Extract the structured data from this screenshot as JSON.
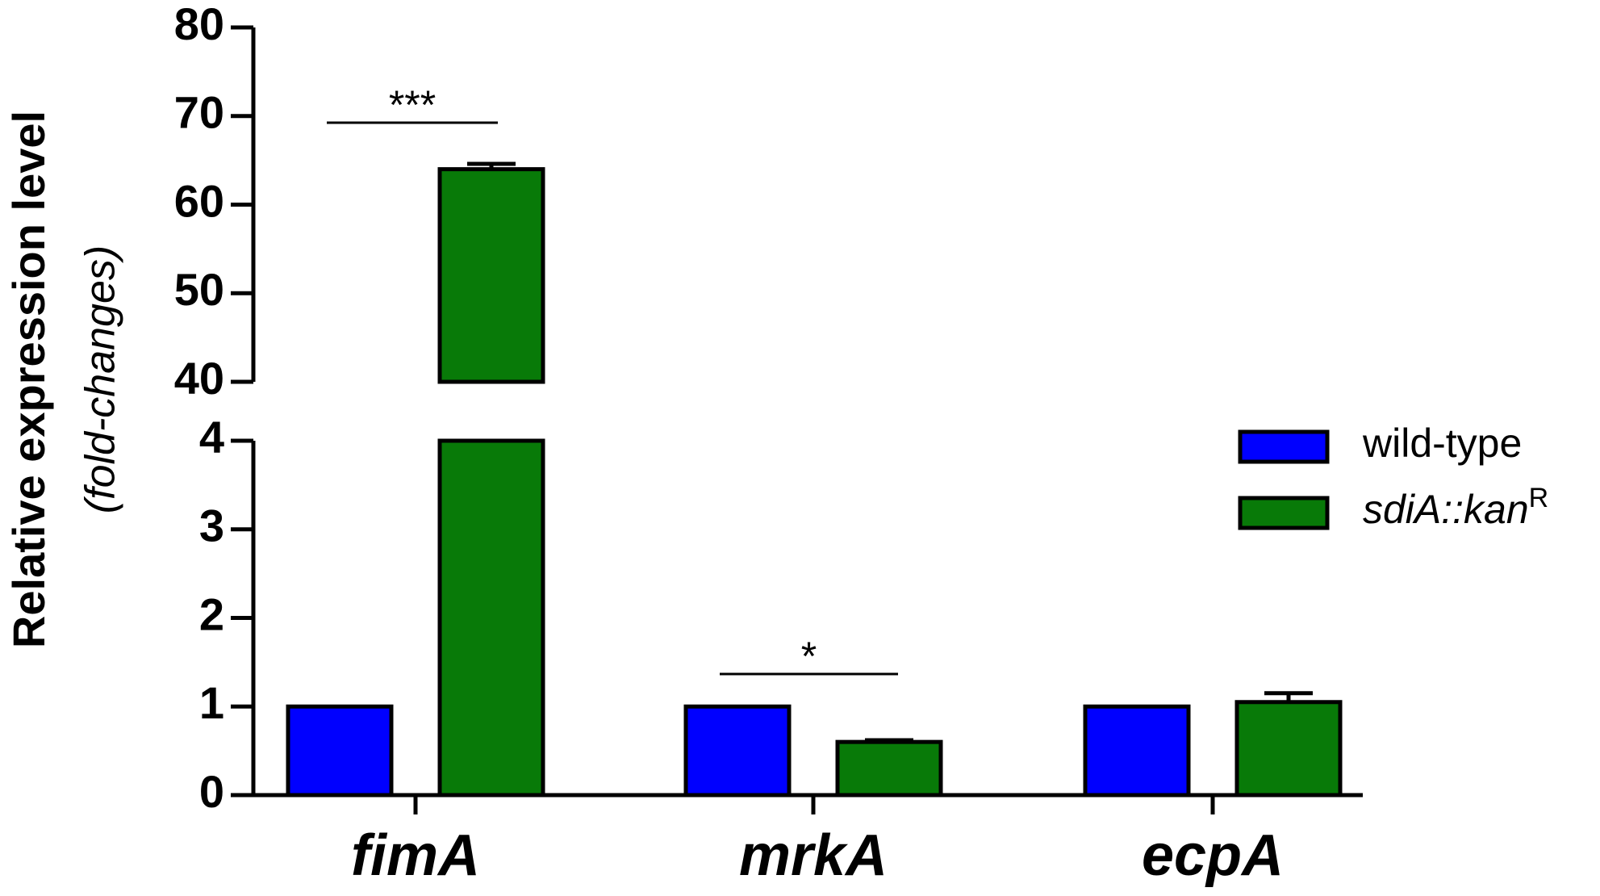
{
  "chart_data": {
    "type": "bar",
    "y_label": "Relative expression level",
    "y_sublabel": "(fold-changes)",
    "categories": [
      "fimA",
      "mrkA",
      "ecpA"
    ],
    "series": [
      {
        "name": "wild-type",
        "color": "#0000ff",
        "values": [
          1,
          1,
          1
        ]
      },
      {
        "name": "sdiA::kanR",
        "color": "#087a08",
        "values": [
          64,
          0.6,
          1.05
        ],
        "errors": [
          0.6,
          0.02,
          0.1
        ]
      }
    ],
    "ylim": [
      0,
      80
    ],
    "y_break": [
      4,
      40
    ],
    "yticks": [
      0,
      1,
      2,
      3,
      4,
      40,
      50,
      60,
      70,
      80
    ],
    "annotations": [
      "***",
      "*"
    ],
    "legend": "right"
  }
}
